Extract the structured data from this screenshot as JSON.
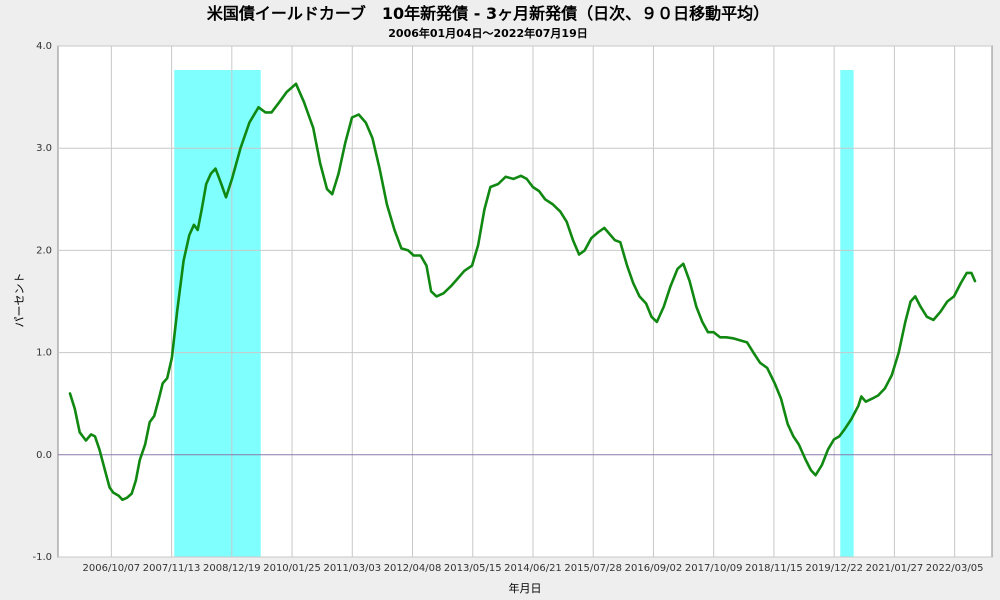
{
  "chart_data": {
    "type": "line",
    "title": "米国債イールドカーブ　10年新発債 - 3ヶ月新発債（日次、９０日移動平均）",
    "subtitle": "2006年01月04日～2022年07月19日",
    "xlabel": "年月日",
    "ylabel": "パーセント",
    "ylim": [
      -1.0,
      4.0
    ],
    "xlim": [
      "2006-01-04",
      "2022-07-19"
    ],
    "y_ticks": [
      "4.0",
      "3.0",
      "2.0",
      "1.0",
      "0.0",
      "-1.0"
    ],
    "x_ticks": [
      "2006/10/07",
      "2007/11/13",
      "2008/12/19",
      "2010/01/25",
      "2011/03/03",
      "2012/04/08",
      "2013/05/15",
      "2014/06/21",
      "2015/07/28",
      "2016/09/02",
      "2017/10/09",
      "2018/11/15",
      "2019/12/22",
      "2021/01/27",
      "2022/03/05"
    ],
    "grid": true,
    "legend": "none",
    "colors": {
      "line": "#118811",
      "recession": "#80ffff",
      "zero_line": "#8878aa",
      "background": "#ffffff",
      "grid": "#c8c8c8"
    },
    "recession_bands": [
      [
        "2007-12-01",
        "2009-06-30"
      ],
      [
        "2020-02-01",
        "2020-04-30"
      ]
    ],
    "series": [
      {
        "values": [
          [
            "2006-01-04",
            0.6
          ],
          [
            "2006-02-05",
            0.45
          ],
          [
            "2006-03-10",
            0.22
          ],
          [
            "2006-04-20",
            0.14
          ],
          [
            "2006-05-25",
            0.2
          ],
          [
            "2006-06-20",
            0.18
          ],
          [
            "2006-07-20",
            0.05
          ],
          [
            "2006-08-25",
            -0.15
          ],
          [
            "2006-09-25",
            -0.32
          ],
          [
            "2006-10-20",
            -0.37
          ],
          [
            "2006-11-25",
            -0.4
          ],
          [
            "2006-12-20",
            -0.44
          ],
          [
            "2007-01-20",
            -0.42
          ],
          [
            "2007-02-20",
            -0.38
          ],
          [
            "2007-03-20",
            -0.25
          ],
          [
            "2007-04-15",
            -0.05
          ],
          [
            "2007-05-20",
            0.1
          ],
          [
            "2007-06-20",
            0.32
          ],
          [
            "2007-07-20",
            0.38
          ],
          [
            "2007-08-20",
            0.55
          ],
          [
            "2007-09-15",
            0.7
          ],
          [
            "2007-10-15",
            0.75
          ],
          [
            "2007-11-15",
            0.95
          ],
          [
            "2007-12-20",
            1.4
          ],
          [
            "2008-02-01",
            1.9
          ],
          [
            "2008-03-10",
            2.15
          ],
          [
            "2008-04-10",
            2.25
          ],
          [
            "2008-05-05",
            2.2
          ],
          [
            "2008-06-01",
            2.4
          ],
          [
            "2008-07-01",
            2.65
          ],
          [
            "2008-08-01",
            2.75
          ],
          [
            "2008-09-01",
            2.8
          ],
          [
            "2008-10-10",
            2.65
          ],
          [
            "2008-11-10",
            2.52
          ],
          [
            "2008-12-20",
            2.7
          ],
          [
            "2009-02-15",
            3.0
          ],
          [
            "2009-04-15",
            3.25
          ],
          [
            "2009-06-15",
            3.4
          ],
          [
            "2009-08-01",
            3.35
          ],
          [
            "2009-09-10",
            3.35
          ],
          [
            "2009-11-01",
            3.45
          ],
          [
            "2009-12-20",
            3.55
          ],
          [
            "2010-02-20",
            3.63
          ],
          [
            "2010-04-15",
            3.45
          ],
          [
            "2010-06-15",
            3.2
          ],
          [
            "2010-08-01",
            2.85
          ],
          [
            "2010-09-15",
            2.6
          ],
          [
            "2010-10-20",
            2.55
          ],
          [
            "2010-12-01",
            2.75
          ],
          [
            "2011-01-15",
            3.05
          ],
          [
            "2011-03-01",
            3.3
          ],
          [
            "2011-04-15",
            3.33
          ],
          [
            "2011-06-01",
            3.25
          ],
          [
            "2011-07-15",
            3.1
          ],
          [
            "2011-09-01",
            2.8
          ],
          [
            "2011-10-20",
            2.45
          ],
          [
            "2011-12-10",
            2.2
          ],
          [
            "2012-01-25",
            2.02
          ],
          [
            "2012-03-10",
            2.0
          ],
          [
            "2012-04-15",
            1.95
          ],
          [
            "2012-06-01",
            1.95
          ],
          [
            "2012-07-10",
            1.85
          ],
          [
            "2012-08-10",
            1.6
          ],
          [
            "2012-09-15",
            1.55
          ],
          [
            "2012-11-01",
            1.58
          ],
          [
            "2012-12-20",
            1.65
          ],
          [
            "2013-02-01",
            1.72
          ],
          [
            "2013-03-20",
            1.8
          ],
          [
            "2013-05-10",
            1.85
          ],
          [
            "2013-06-20",
            2.05
          ],
          [
            "2013-08-01",
            2.4
          ],
          [
            "2013-09-10",
            2.62
          ],
          [
            "2013-11-01",
            2.65
          ],
          [
            "2013-12-20",
            2.72
          ],
          [
            "2014-02-10",
            2.7
          ],
          [
            "2014-04-01",
            2.73
          ],
          [
            "2014-05-10",
            2.7
          ],
          [
            "2014-06-20",
            2.62
          ],
          [
            "2014-08-01",
            2.58
          ],
          [
            "2014-09-10",
            2.5
          ],
          [
            "2014-11-01",
            2.45
          ],
          [
            "2014-12-20",
            2.38
          ],
          [
            "2015-02-01",
            2.28
          ],
          [
            "2015-03-15",
            2.1
          ],
          [
            "2015-04-25",
            1.96
          ],
          [
            "2015-06-01",
            2.0
          ],
          [
            "2015-07-15",
            2.12
          ],
          [
            "2015-09-01",
            2.18
          ],
          [
            "2015-10-10",
            2.22
          ],
          [
            "2015-11-20",
            2.15
          ],
          [
            "2015-12-20",
            2.1
          ],
          [
            "2016-01-25",
            2.08
          ],
          [
            "2016-03-10",
            1.85
          ],
          [
            "2016-04-20",
            1.68
          ],
          [
            "2016-06-01",
            1.55
          ],
          [
            "2016-07-15",
            1.48
          ],
          [
            "2016-08-20",
            1.35
          ],
          [
            "2016-09-25",
            1.3
          ],
          [
            "2016-11-10",
            1.45
          ],
          [
            "2016-12-25",
            1.65
          ],
          [
            "2017-02-10",
            1.82
          ],
          [
            "2017-03-20",
            1.87
          ],
          [
            "2017-05-01",
            1.7
          ],
          [
            "2017-06-15",
            1.45
          ],
          [
            "2017-07-25",
            1.3
          ],
          [
            "2017-09-01",
            1.2
          ],
          [
            "2017-10-09",
            1.2
          ],
          [
            "2017-11-20",
            1.15
          ],
          [
            "2018-01-01",
            1.15
          ],
          [
            "2018-02-15",
            1.14
          ],
          [
            "2018-04-01",
            1.12
          ],
          [
            "2018-05-20",
            1.1
          ],
          [
            "2018-07-01",
            1.0
          ],
          [
            "2018-08-15",
            0.9
          ],
          [
            "2018-10-01",
            0.85
          ],
          [
            "2018-11-20",
            0.7
          ],
          [
            "2019-01-01",
            0.55
          ],
          [
            "2019-02-15",
            0.3
          ],
          [
            "2019-03-25",
            0.18
          ],
          [
            "2019-05-01",
            0.1
          ],
          [
            "2019-06-15",
            -0.05
          ],
          [
            "2019-07-20",
            -0.15
          ],
          [
            "2019-08-20",
            -0.2
          ],
          [
            "2019-10-01",
            -0.1
          ],
          [
            "2019-11-10",
            0.05
          ],
          [
            "2019-12-20",
            0.15
          ],
          [
            "2020-01-25",
            0.18
          ],
          [
            "2020-03-01",
            0.25
          ],
          [
            "2020-04-15",
            0.35
          ],
          [
            "2020-06-01",
            0.48
          ],
          [
            "2020-06-20",
            0.57
          ],
          [
            "2020-07-20",
            0.52
          ],
          [
            "2020-09-01",
            0.55
          ],
          [
            "2020-10-10",
            0.58
          ],
          [
            "2020-11-25",
            0.65
          ],
          [
            "2021-01-10",
            0.78
          ],
          [
            "2021-02-25",
            1.0
          ],
          [
            "2021-04-10",
            1.3
          ],
          [
            "2021-05-15",
            1.5
          ],
          [
            "2021-06-15",
            1.55
          ],
          [
            "2021-07-20",
            1.45
          ],
          [
            "2021-09-01",
            1.35
          ],
          [
            "2021-10-15",
            1.32
          ],
          [
            "2021-12-01",
            1.4
          ],
          [
            "2022-01-15",
            1.5
          ],
          [
            "2022-03-01",
            1.55
          ],
          [
            "2022-04-15",
            1.68
          ],
          [
            "2022-05-25",
            1.78
          ],
          [
            "2022-06-25",
            1.78
          ],
          [
            "2022-07-19",
            1.7
          ]
        ]
      }
    ]
  }
}
